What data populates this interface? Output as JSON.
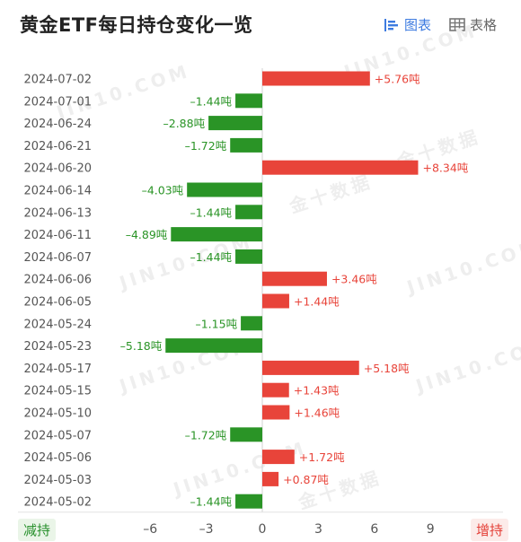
{
  "title": "黄金ETF每日持仓变化一览",
  "view_tabs": [
    {
      "label": "图表",
      "icon": "bar-chart-icon",
      "active": true,
      "color": "#3d7be0"
    },
    {
      "label": "表格",
      "icon": "table-icon",
      "active": false,
      "color": "#666666"
    }
  ],
  "watermark_text": [
    "JIN10.COM",
    "金十数据"
  ],
  "badges": {
    "left": "减持",
    "right": "增持"
  },
  "colors": {
    "positive": "#e8443a",
    "negative": "#2a9426",
    "positive_text": "#e8443a",
    "negative_text": "#2a9426"
  },
  "chart_data": {
    "type": "bar",
    "orientation": "horizontal",
    "categories": [
      "2024-07-02",
      "2024-07-01",
      "2024-06-24",
      "2024-06-21",
      "2024-06-20",
      "2024-06-14",
      "2024-06-13",
      "2024-06-11",
      "2024-06-07",
      "2024-06-06",
      "2024-06-05",
      "2024-05-24",
      "2024-05-23",
      "2024-05-17",
      "2024-05-15",
      "2024-05-10",
      "2024-05-07",
      "2024-05-06",
      "2024-05-03",
      "2024-05-02"
    ],
    "values": [
      5.76,
      -1.44,
      -2.88,
      -1.72,
      8.34,
      -4.03,
      -1.44,
      -4.89,
      -1.44,
      3.46,
      1.44,
      -1.15,
      -5.18,
      5.18,
      1.43,
      1.46,
      -1.72,
      1.72,
      0.87,
      -1.44
    ],
    "labels": [
      "+5.76吨",
      "–1.44吨",
      "–2.88吨",
      "–1.72吨",
      "+8.34吨",
      "–4.03吨",
      "–1.44吨",
      "–4.89吨",
      "–1.44吨",
      "+3.46吨",
      "+1.44吨",
      "–1.15吨",
      "–5.18吨",
      "+5.18吨",
      "+1.43吨",
      "+1.46吨",
      "–1.72吨",
      "+1.72吨",
      "+0.87吨",
      "–1.44吨"
    ],
    "x_ticks": [
      "–6",
      "–3",
      "0",
      "3",
      "6",
      "9"
    ],
    "x_tick_values": [
      -6,
      -3,
      0,
      3,
      6,
      9
    ],
    "xlim": [
      -7,
      10
    ],
    "title": "黄金ETF每日持仓变化一览",
    "xlabel": "",
    "ylabel": ""
  }
}
